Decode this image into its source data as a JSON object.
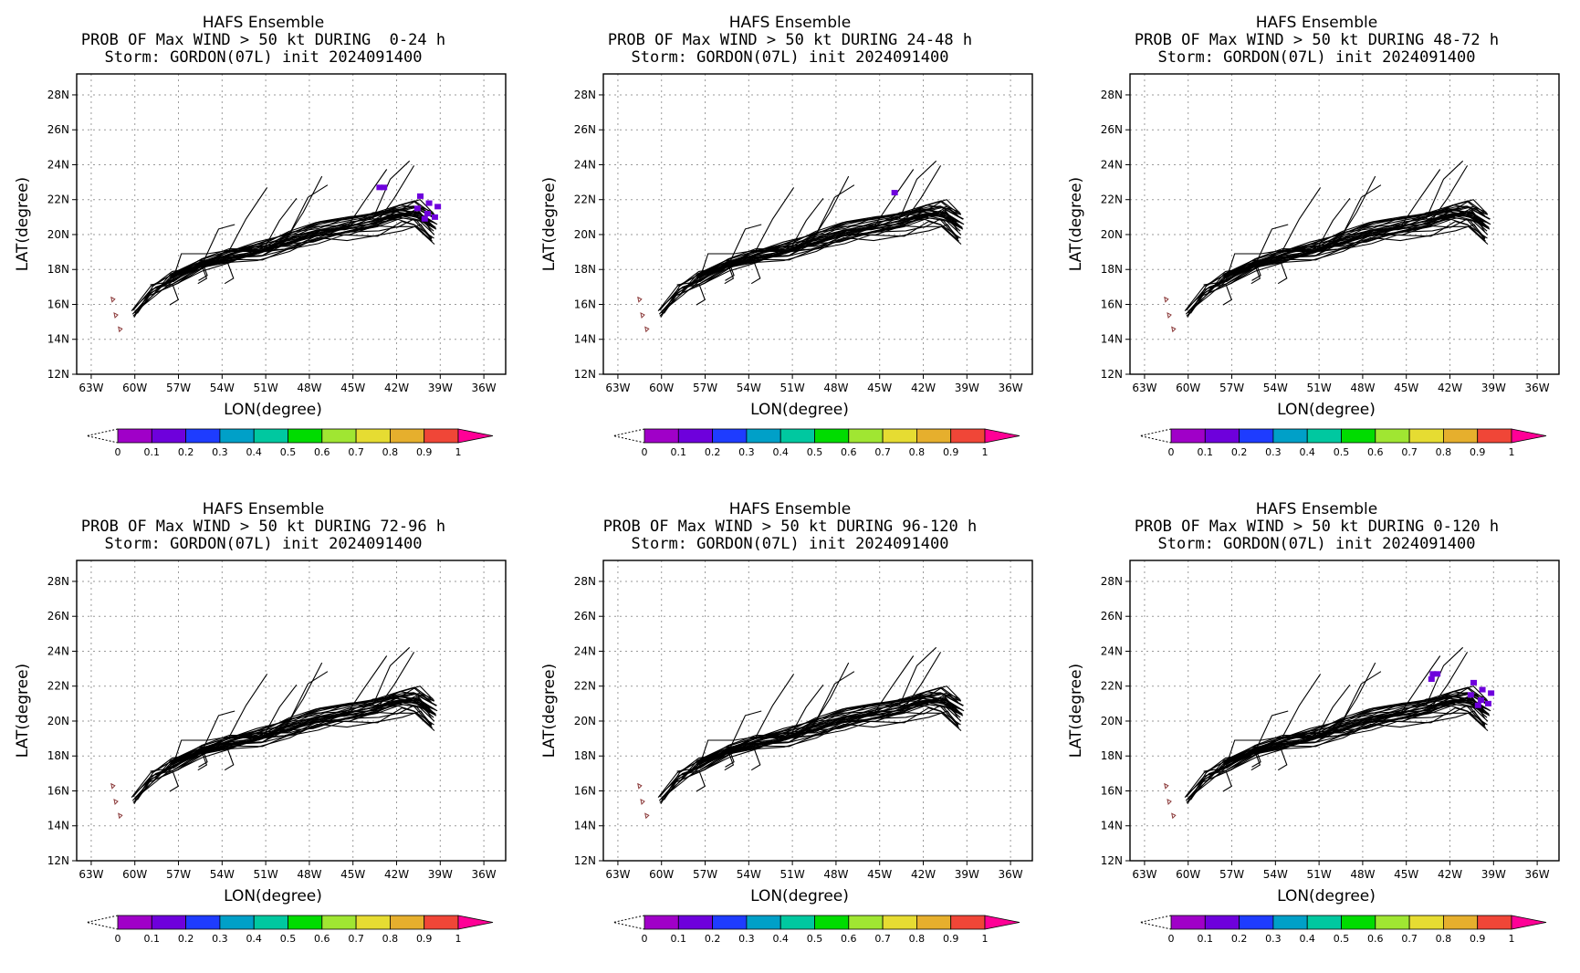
{
  "figure": {
    "panels": [
      {
        "title": "HAFS Ensemble",
        "subtitle": "PROB OF Max WIND > 50 kt DURING  0-24 h",
        "storm": "Storm: GORDON(07L) init 2024091400"
      },
      {
        "title": "HAFS Ensemble",
        "subtitle": "PROB OF Max WIND > 50 kt DURING 24-48 h",
        "storm": "Storm: GORDON(07L) init 2024091400"
      },
      {
        "title": "HAFS Ensemble",
        "subtitle": "PROB OF Max WIND > 50 kt DURING 48-72 h",
        "storm": "Storm: GORDON(07L) init 2024091400"
      },
      {
        "title": "HAFS Ensemble",
        "subtitle": "PROB OF Max WIND > 50 kt DURING 72-96 h",
        "storm": "Storm: GORDON(07L) init 2024091400"
      },
      {
        "title": "HAFS Ensemble",
        "subtitle": "PROB OF Max WIND > 50 kt DURING 96-120 h",
        "storm": "Storm: GORDON(07L) init 2024091400"
      },
      {
        "title": "HAFS Ensemble",
        "subtitle": "PROB OF Max WIND > 50 kt DURING 0-120 h",
        "storm": "Storm: GORDON(07L) init 2024091400"
      }
    ]
  },
  "chart_data": [
    {
      "type": "heatmap",
      "title": "HAFS Ensemble",
      "subtitle": "PROB OF Max WIND > 50 kt DURING  0-24 h",
      "storm": "Storm: GORDON(07L) init 2024091400",
      "xlabel": "LON(degree)",
      "ylabel": "LAT(degree)",
      "xlim": [
        -64,
        -34.5
      ],
      "ylim": [
        12,
        29.2
      ],
      "x_ticks": [
        "63W",
        "60W",
        "57W",
        "54W",
        "51W",
        "48W",
        "45W",
        "42W",
        "39W",
        "36W"
      ],
      "y_ticks": [
        "12N",
        "14N",
        "16N",
        "18N",
        "20N",
        "22N",
        "24N",
        "26N",
        "28N"
      ],
      "grid": true,
      "colorbar": {
        "ticks": [
          "0",
          "0.1",
          "0.2",
          "0.3",
          "0.4",
          "0.5",
          "0.6",
          "0.7",
          "0.8",
          "0.9",
          "1"
        ],
        "colors": [
          "#a000c8",
          "#6e00dc",
          "#1e3cff",
          "#00a0c8",
          "#00c8a0",
          "#00dc00",
          "#a0e632",
          "#e6dc32",
          "#e6af2d",
          "#f04637",
          "#ff0096"
        ]
      },
      "probability_cells": [
        {
          "lon": -43.2,
          "lat": 22.7,
          "prob": 0.1
        },
        {
          "lon": -42.9,
          "lat": 22.7,
          "prob": 0.1
        },
        {
          "lon": -40.4,
          "lat": 22.2,
          "prob": 0.1
        },
        {
          "lon": -39.8,
          "lat": 21.8,
          "prob": 0.1
        },
        {
          "lon": -39.2,
          "lat": 21.6,
          "prob": 0.1
        },
        {
          "lon": -40.6,
          "lat": 21.5,
          "prob": 0.1
        },
        {
          "lon": -39.9,
          "lat": 21.2,
          "prob": 0.1
        },
        {
          "lon": -39.4,
          "lat": 21.0,
          "prob": 0.1
        },
        {
          "lon": -40.1,
          "lat": 20.9,
          "prob": 0.1
        }
      ]
    },
    {
      "type": "heatmap",
      "title": "HAFS Ensemble",
      "subtitle": "PROB OF Max WIND > 50 kt DURING 24-48 h",
      "storm": "Storm: GORDON(07L) init 2024091400",
      "xlabel": "LON(degree)",
      "ylabel": "LAT(degree)",
      "xlim": [
        -64,
        -34.5
      ],
      "ylim": [
        12,
        29.2
      ],
      "x_ticks": [
        "63W",
        "60W",
        "57W",
        "54W",
        "51W",
        "48W",
        "45W",
        "42W",
        "39W",
        "36W"
      ],
      "y_ticks": [
        "12N",
        "14N",
        "16N",
        "18N",
        "20N",
        "22N",
        "24N",
        "26N",
        "28N"
      ],
      "grid": true,
      "colorbar": {
        "ticks": [
          "0",
          "0.1",
          "0.2",
          "0.3",
          "0.4",
          "0.5",
          "0.6",
          "0.7",
          "0.8",
          "0.9",
          "1"
        ],
        "colors": [
          "#a000c8",
          "#6e00dc",
          "#1e3cff",
          "#00a0c8",
          "#00c8a0",
          "#00dc00",
          "#a0e632",
          "#e6dc32",
          "#e6af2d",
          "#f04637",
          "#ff0096"
        ]
      },
      "probability_cells": [
        {
          "lon": -44.0,
          "lat": 22.4,
          "prob": 0.1
        }
      ]
    },
    {
      "type": "heatmap",
      "title": "HAFS Ensemble",
      "subtitle": "PROB OF Max WIND > 50 kt DURING 48-72 h",
      "storm": "Storm: GORDON(07L) init 2024091400",
      "xlabel": "LON(degree)",
      "ylabel": "LAT(degree)",
      "xlim": [
        -64,
        -34.5
      ],
      "ylim": [
        12,
        29.2
      ],
      "x_ticks": [
        "63W",
        "60W",
        "57W",
        "54W",
        "51W",
        "48W",
        "45W",
        "42W",
        "39W",
        "36W"
      ],
      "y_ticks": [
        "12N",
        "14N",
        "16N",
        "18N",
        "20N",
        "22N",
        "24N",
        "26N",
        "28N"
      ],
      "grid": true,
      "colorbar": {
        "ticks": [
          "0",
          "0.1",
          "0.2",
          "0.3",
          "0.4",
          "0.5",
          "0.6",
          "0.7",
          "0.8",
          "0.9",
          "1"
        ],
        "colors": [
          "#a000c8",
          "#6e00dc",
          "#1e3cff",
          "#00a0c8",
          "#00c8a0",
          "#00dc00",
          "#a0e632",
          "#e6dc32",
          "#e6af2d",
          "#f04637",
          "#ff0096"
        ]
      },
      "probability_cells": []
    },
    {
      "type": "heatmap",
      "title": "HAFS Ensemble",
      "subtitle": "PROB OF Max WIND > 50 kt DURING 72-96 h",
      "storm": "Storm: GORDON(07L) init 2024091400",
      "xlabel": "LON(degree)",
      "ylabel": "LAT(degree)",
      "xlim": [
        -64,
        -34.5
      ],
      "ylim": [
        12,
        29.2
      ],
      "x_ticks": [
        "63W",
        "60W",
        "57W",
        "54W",
        "51W",
        "48W",
        "45W",
        "42W",
        "39W",
        "36W"
      ],
      "y_ticks": [
        "12N",
        "14N",
        "16N",
        "18N",
        "20N",
        "22N",
        "24N",
        "26N",
        "28N"
      ],
      "grid": true,
      "colorbar": {
        "ticks": [
          "0",
          "0.1",
          "0.2",
          "0.3",
          "0.4",
          "0.5",
          "0.6",
          "0.7",
          "0.8",
          "0.9",
          "1"
        ],
        "colors": [
          "#a000c8",
          "#6e00dc",
          "#1e3cff",
          "#00a0c8",
          "#00c8a0",
          "#00dc00",
          "#a0e632",
          "#e6dc32",
          "#e6af2d",
          "#f04637",
          "#ff0096"
        ]
      },
      "probability_cells": []
    },
    {
      "type": "heatmap",
      "title": "HAFS Ensemble",
      "subtitle": "PROB OF Max WIND > 50 kt DURING 96-120 h",
      "storm": "Storm: GORDON(07L) init 2024091400",
      "xlabel": "LON(degree)",
      "ylabel": "LAT(degree)",
      "xlim": [
        -64,
        -34.5
      ],
      "ylim": [
        12,
        29.2
      ],
      "x_ticks": [
        "63W",
        "60W",
        "57W",
        "54W",
        "51W",
        "48W",
        "45W",
        "42W",
        "39W",
        "36W"
      ],
      "y_ticks": [
        "12N",
        "14N",
        "16N",
        "18N",
        "20N",
        "22N",
        "24N",
        "26N",
        "28N"
      ],
      "grid": true,
      "colorbar": {
        "ticks": [
          "0",
          "0.1",
          "0.2",
          "0.3",
          "0.4",
          "0.5",
          "0.6",
          "0.7",
          "0.8",
          "0.9",
          "1"
        ],
        "colors": [
          "#a000c8",
          "#6e00dc",
          "#1e3cff",
          "#00a0c8",
          "#00c8a0",
          "#00dc00",
          "#a0e632",
          "#e6dc32",
          "#e6af2d",
          "#f04637",
          "#ff0096"
        ]
      },
      "probability_cells": []
    },
    {
      "type": "heatmap",
      "title": "HAFS Ensemble",
      "subtitle": "PROB OF Max WIND > 50 kt DURING 0-120 h",
      "storm": "Storm: GORDON(07L) init 2024091400",
      "xlabel": "LON(degree)",
      "ylabel": "LAT(degree)",
      "xlim": [
        -64,
        -34.5
      ],
      "ylim": [
        12,
        29.2
      ],
      "x_ticks": [
        "63W",
        "60W",
        "57W",
        "54W",
        "51W",
        "48W",
        "45W",
        "42W",
        "39W",
        "36W"
      ],
      "y_ticks": [
        "12N",
        "14N",
        "16N",
        "18N",
        "20N",
        "22N",
        "24N",
        "26N",
        "28N"
      ],
      "grid": true,
      "colorbar": {
        "ticks": [
          "0",
          "0.1",
          "0.2",
          "0.3",
          "0.4",
          "0.5",
          "0.6",
          "0.7",
          "0.8",
          "0.9",
          "1"
        ],
        "colors": [
          "#a000c8",
          "#6e00dc",
          "#1e3cff",
          "#00a0c8",
          "#00c8a0",
          "#00dc00",
          "#a0e632",
          "#e6dc32",
          "#e6af2d",
          "#f04637",
          "#ff0096"
        ]
      },
      "probability_cells": [
        {
          "lon": -43.2,
          "lat": 22.7,
          "prob": 0.1
        },
        {
          "lon": -42.9,
          "lat": 22.7,
          "prob": 0.1
        },
        {
          "lon": -43.3,
          "lat": 22.4,
          "prob": 0.1
        },
        {
          "lon": -40.4,
          "lat": 22.2,
          "prob": 0.1
        },
        {
          "lon": -39.8,
          "lat": 21.8,
          "prob": 0.1
        },
        {
          "lon": -39.2,
          "lat": 21.6,
          "prob": 0.1
        },
        {
          "lon": -40.6,
          "lat": 21.5,
          "prob": 0.1
        },
        {
          "lon": -39.9,
          "lat": 21.2,
          "prob": 0.1
        },
        {
          "lon": -39.4,
          "lat": 21.0,
          "prob": 0.1
        },
        {
          "lon": -40.1,
          "lat": 20.9,
          "prob": 0.1
        }
      ]
    }
  ],
  "ensemble_tracks": {
    "member_count": 30,
    "base_track": [
      {
        "lon": -60.0,
        "lat": 15.5
      },
      {
        "lon": -58.8,
        "lat": 16.8
      },
      {
        "lon": -57.3,
        "lat": 17.5
      },
      {
        "lon": -55.5,
        "lat": 18.2
      },
      {
        "lon": -53.5,
        "lat": 18.7
      },
      {
        "lon": -51.5,
        "lat": 19.1
      },
      {
        "lon": -49.5,
        "lat": 19.6
      },
      {
        "lon": -47.5,
        "lat": 20.1
      },
      {
        "lon": -45.5,
        "lat": 20.4
      },
      {
        "lon": -43.5,
        "lat": 20.7
      },
      {
        "lon": -41.8,
        "lat": 21.1
      },
      {
        "lon": -40.6,
        "lat": 21.2
      },
      {
        "lon": -39.5,
        "lat": 20.4
      }
    ],
    "island_marks": [
      {
        "lon": -61.5,
        "lat": 16.3
      },
      {
        "lon": -61.3,
        "lat": 15.4
      },
      {
        "lon": -61.0,
        "lat": 14.6
      }
    ]
  }
}
